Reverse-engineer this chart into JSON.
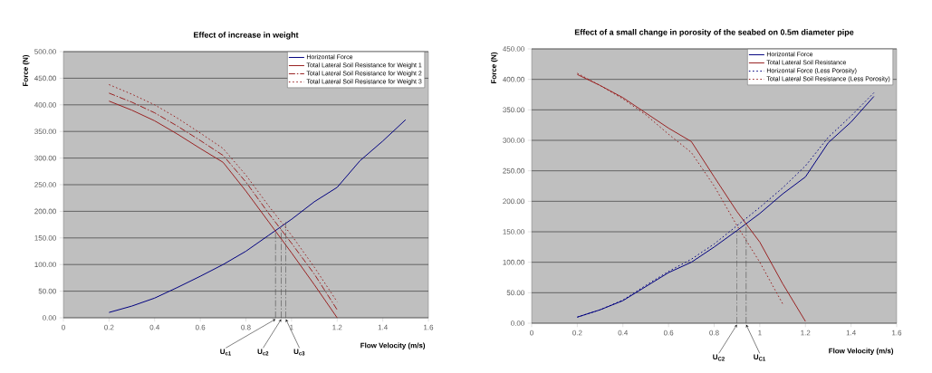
{
  "chart_data": [
    {
      "type": "line",
      "title": "Effect of increase in weight",
      "xlabel": "Flow Velocity (m/s)",
      "ylabel": "Force (N)",
      "x": [
        0.2,
        0.3,
        0.4,
        0.5,
        0.6,
        0.7,
        0.8,
        0.9,
        1.0,
        1.1,
        1.2
      ],
      "series": [
        {
          "name": "Horizontal Force",
          "color": "#000080",
          "line_style": "solid",
          "x": [
            0.2,
            0.3,
            0.4,
            0.5,
            0.6,
            0.7,
            0.8,
            0.9,
            1.0,
            1.1,
            1.2,
            1.3,
            1.4,
            1.5
          ],
          "values": [
            10,
            22,
            37,
            57,
            78,
            100,
            125,
            155,
            185,
            218,
            245,
            295,
            332,
            372
          ]
        },
        {
          "name": "Total Lateral Soil Resistance for Weight 1",
          "color": "#992222",
          "line_style": "solid",
          "values": [
            407,
            390,
            370,
            345,
            318,
            292,
            238,
            180,
            122,
            62,
            0
          ]
        },
        {
          "name": "Total Lateral Soil Resistance for Weight 2",
          "color": "#992222",
          "line_style": "dashed",
          "values": [
            422,
            405,
            385,
            360,
            333,
            305,
            255,
            196,
            140,
            82,
            15
          ]
        },
        {
          "name": "Total Lateral Soil Resistance for Weight 3",
          "color": "#992222",
          "line_style": "dotted",
          "values": [
            438,
            420,
            400,
            375,
            347,
            318,
            268,
            210,
            155,
            95,
            30
          ]
        },
        {
          "color": "#4c4c4c",
          "line_style": "dashed",
          "x": [
            0.93,
            0.93
          ],
          "values": [
            0,
            163
          ]
        },
        {
          "color": "#4c4c4c",
          "line_style": "dashed",
          "x": [
            0.955,
            0.955
          ],
          "values": [
            0,
            172
          ]
        },
        {
          "color": "#4c4c4c",
          "line_style": "dashed",
          "x": [
            0.975,
            0.975
          ],
          "values": [
            0,
            180
          ]
        }
      ],
      "xlim": [
        0,
        1.6
      ],
      "xticks": [
        0,
        0.2,
        0.4,
        0.6,
        0.8,
        1,
        1.2,
        1.4,
        1.6
      ],
      "ylim": [
        0,
        500
      ],
      "yticks": [
        {
          "value": 0,
          "label": "0.00"
        },
        {
          "value": 50,
          "label": "50.00"
        },
        {
          "value": 100,
          "label": "100.00"
        },
        {
          "value": 150,
          "label": "150.00"
        },
        {
          "value": 200,
          "label": "200.00"
        },
        {
          "value": 250,
          "label": "250.00"
        },
        {
          "value": 300,
          "label": "300.00"
        },
        {
          "value": 350,
          "label": "350.00"
        },
        {
          "value": 400,
          "label": "400.00"
        },
        {
          "value": 450,
          "label": "450.00"
        },
        {
          "value": 500,
          "label": "500.00"
        }
      ],
      "annotations": [
        {
          "text": "U$_{c1}$",
          "x": 0.93,
          "y": 0
        },
        {
          "text": "U$_{c2}$",
          "x": 0.955,
          "y": 0
        },
        {
          "text": "U$_{c3}$",
          "x": 0.975,
          "y": 0
        }
      ],
      "grid": "y",
      "legend": "top right",
      "marker": "none"
    },
    {
      "type": "line",
      "title": "Effect of a small change in porosity of the seabed on 0.5m diameter pipe",
      "xlabel": "Flow Velocity (m/s)",
      "ylabel": "Force (N)",
      "x": [
        0.2,
        0.3,
        0.4,
        0.5,
        0.6,
        0.7,
        0.8,
        0.9,
        1.0,
        1.1,
        1.2,
        1.3,
        1.4,
        1.5
      ],
      "series": [
        {
          "name": "Horizontal Force",
          "color": "#000080",
          "line_style": "solid",
          "values": [
            10,
            22,
            37,
            60,
            83,
            100,
            125,
            152,
            180,
            212,
            240,
            296,
            330,
            372
          ]
        },
        {
          "name": "Total Lateral Soil Resistance",
          "color": "#992222",
          "line_style": "solid",
          "x": [
            0.2,
            0.3,
            0.4,
            0.5,
            0.6,
            0.7,
            0.8,
            0.9,
            1.0,
            1.1,
            1.2
          ],
          "values": [
            408,
            390,
            370,
            345,
            320,
            298,
            240,
            183,
            133,
            65,
            3
          ]
        },
        {
          "name": "Horizontal Force (Less Porosity)",
          "color": "#000080",
          "line_style": "dotted",
          "values": [
            10,
            22,
            38,
            62,
            85,
            105,
            130,
            160,
            190,
            222,
            258,
            305,
            340,
            378
          ]
        },
        {
          "name": "Total Lateral Soil Resistance (Less Porosity)",
          "color": "#992222",
          "line_style": "dotted",
          "x": [
            0.2,
            0.3,
            0.4,
            0.5,
            0.6,
            0.7,
            0.8,
            0.9,
            1.0,
            1.1
          ],
          "values": [
            410,
            390,
            368,
            342,
            310,
            280,
            225,
            160,
            100,
            32
          ]
        },
        {
          "color": "#4c4c4c",
          "line_style": "dashed",
          "x": [
            0.9,
            0.9
          ],
          "values": [
            0,
            152
          ]
        },
        {
          "color": "#4c4c4c",
          "line_style": "dashed",
          "x": [
            0.94,
            0.94
          ],
          "values": [
            0,
            165
          ]
        }
      ],
      "xlim": [
        0,
        1.6
      ],
      "xticks": [
        0,
        0.2,
        0.4,
        0.6,
        0.8,
        1,
        1.2,
        1.4,
        1.6
      ],
      "ylim": [
        0,
        450
      ],
      "yticks": [
        {
          "value": 0,
          "label": "0.00"
        },
        {
          "value": 50,
          "label": "50.00"
        },
        {
          "value": 100,
          "label": "100.00"
        },
        {
          "value": 150,
          "label": "150.00"
        },
        {
          "value": 200,
          "label": "200.00"
        },
        {
          "value": 250,
          "label": "250.00"
        },
        {
          "value": 300,
          "label": "300.00"
        },
        {
          "value": 350,
          "label": "350.00"
        },
        {
          "value": 400,
          "label": "400.00"
        },
        {
          "value": 450,
          "label": "450.00"
        }
      ],
      "annotations": [
        {
          "text": "U$_{C2}$",
          "x": 0.9,
          "y": 0
        },
        {
          "text": "U$_{C1}$",
          "x": 0.94,
          "y": 0
        }
      ],
      "grid": "y",
      "legend": "top right",
      "marker": "none"
    }
  ]
}
